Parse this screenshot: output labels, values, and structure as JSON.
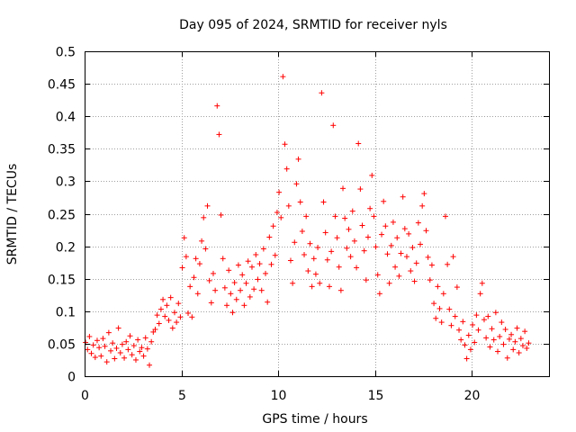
{
  "chart_data": {
    "type": "scatter",
    "title": "Day 095 of 2024, SRMTID for receiver nyls",
    "xlabel": "GPS time / hours",
    "ylabel": "SRMTID / TECUs",
    "xlim": [
      0,
      24
    ],
    "ylim": [
      0,
      0.5
    ],
    "xticks": [
      "0",
      "5",
      "10",
      "15",
      "20"
    ],
    "yticks": [
      "0",
      "0.05",
      "0.1",
      "0.15",
      "0.2",
      "0.25",
      "0.3",
      "0.35",
      "0.4",
      "0.45",
      "0.5"
    ],
    "grid": true,
    "marker": "+",
    "color": "#ff0000",
    "series": [
      {
        "points": [
          [
            0.05,
            0.052
          ],
          [
            0.15,
            0.041
          ],
          [
            0.25,
            0.061
          ],
          [
            0.35,
            0.035
          ],
          [
            0.45,
            0.048
          ],
          [
            0.55,
            0.029
          ],
          [
            0.65,
            0.055
          ],
          [
            0.75,
            0.044
          ],
          [
            0.85,
            0.031
          ],
          [
            0.95,
            0.058
          ],
          [
            1.05,
            0.046
          ],
          [
            1.15,
            0.022
          ],
          [
            1.25,
            0.067
          ],
          [
            1.35,
            0.039
          ],
          [
            1.45,
            0.051
          ],
          [
            1.55,
            0.027
          ],
          [
            1.65,
            0.043
          ],
          [
            1.75,
            0.074
          ],
          [
            1.85,
            0.036
          ],
          [
            1.95,
            0.049
          ],
          [
            2.05,
            0.028
          ],
          [
            2.15,
            0.053
          ],
          [
            2.25,
            0.041
          ],
          [
            2.35,
            0.062
          ],
          [
            2.45,
            0.033
          ],
          [
            2.55,
            0.047
          ],
          [
            2.65,
            0.025
          ],
          [
            2.75,
            0.056
          ],
          [
            2.85,
            0.038
          ],
          [
            2.95,
            0.044
          ],
          [
            3.05,
            0.031
          ],
          [
            3.15,
            0.059
          ],
          [
            3.25,
            0.042
          ],
          [
            3.35,
            0.017
          ],
          [
            3.45,
            0.053
          ],
          [
            3.55,
            0.068
          ],
          [
            3.65,
            0.072
          ],
          [
            3.75,
            0.094
          ],
          [
            3.85,
            0.081
          ],
          [
            3.95,
            0.103
          ],
          [
            4.05,
            0.118
          ],
          [
            4.15,
            0.092
          ],
          [
            4.25,
            0.109
          ],
          [
            4.35,
            0.086
          ],
          [
            4.45,
            0.121
          ],
          [
            4.55,
            0.074
          ],
          [
            4.65,
            0.098
          ],
          [
            4.75,
            0.083
          ],
          [
            4.85,
            0.112
          ],
          [
            4.95,
            0.091
          ],
          [
            5.05,
            0.167
          ],
          [
            5.15,
            0.213
          ],
          [
            5.25,
            0.184
          ],
          [
            5.35,
            0.097
          ],
          [
            5.45,
            0.138
          ],
          [
            5.55,
            0.091
          ],
          [
            5.65,
            0.152
          ],
          [
            5.75,
            0.181
          ],
          [
            5.85,
            0.127
          ],
          [
            5.95,
            0.173
          ],
          [
            6.05,
            0.208
          ],
          [
            6.15,
            0.244
          ],
          [
            6.25,
            0.196
          ],
          [
            6.35,
            0.262
          ],
          [
            6.45,
            0.147
          ],
          [
            6.55,
            0.113
          ],
          [
            6.65,
            0.158
          ],
          [
            6.75,
            0.132
          ],
          [
            6.85,
            0.416
          ],
          [
            6.95,
            0.372
          ],
          [
            7.05,
            0.248
          ],
          [
            7.15,
            0.181
          ],
          [
            7.25,
            0.136
          ],
          [
            7.35,
            0.109
          ],
          [
            7.45,
            0.163
          ],
          [
            7.55,
            0.127
          ],
          [
            7.65,
            0.098
          ],
          [
            7.75,
            0.144
          ],
          [
            7.85,
            0.118
          ],
          [
            7.95,
            0.171
          ],
          [
            8.05,
            0.132
          ],
          [
            8.15,
            0.156
          ],
          [
            8.25,
            0.109
          ],
          [
            8.35,
            0.143
          ],
          [
            8.45,
            0.177
          ],
          [
            8.55,
            0.122
          ],
          [
            8.65,
            0.168
          ],
          [
            8.75,
            0.134
          ],
          [
            8.85,
            0.187
          ],
          [
            8.95,
            0.149
          ],
          [
            9.05,
            0.173
          ],
          [
            9.15,
            0.132
          ],
          [
            9.25,
            0.196
          ],
          [
            9.35,
            0.158
          ],
          [
            9.45,
            0.114
          ],
          [
            9.55,
            0.214
          ],
          [
            9.65,
            0.172
          ],
          [
            9.75,
            0.231
          ],
          [
            9.85,
            0.186
          ],
          [
            9.95,
            0.252
          ],
          [
            10.05,
            0.283
          ],
          [
            10.15,
            0.244
          ],
          [
            10.25,
            0.461
          ],
          [
            10.35,
            0.357
          ],
          [
            10.45,
            0.319
          ],
          [
            10.55,
            0.262
          ],
          [
            10.65,
            0.178
          ],
          [
            10.75,
            0.143
          ],
          [
            10.85,
            0.206
          ],
          [
            10.95,
            0.296
          ],
          [
            11.05,
            0.334
          ],
          [
            11.15,
            0.268
          ],
          [
            11.25,
            0.223
          ],
          [
            11.35,
            0.187
          ],
          [
            11.45,
            0.246
          ],
          [
            11.55,
            0.162
          ],
          [
            11.65,
            0.204
          ],
          [
            11.75,
            0.138
          ],
          [
            11.85,
            0.181
          ],
          [
            11.95,
            0.157
          ],
          [
            12.05,
            0.198
          ],
          [
            12.15,
            0.143
          ],
          [
            12.25,
            0.436
          ],
          [
            12.35,
            0.268
          ],
          [
            12.45,
            0.221
          ],
          [
            12.55,
            0.179
          ],
          [
            12.65,
            0.138
          ],
          [
            12.75,
            0.192
          ],
          [
            12.85,
            0.386
          ],
          [
            12.95,
            0.246
          ],
          [
            13.05,
            0.213
          ],
          [
            13.15,
            0.168
          ],
          [
            13.25,
            0.132
          ],
          [
            13.35,
            0.289
          ],
          [
            13.45,
            0.243
          ],
          [
            13.55,
            0.197
          ],
          [
            13.65,
            0.226
          ],
          [
            13.75,
            0.184
          ],
          [
            13.85,
            0.254
          ],
          [
            13.95,
            0.208
          ],
          [
            14.05,
            0.167
          ],
          [
            14.15,
            0.358
          ],
          [
            14.25,
            0.288
          ],
          [
            14.35,
            0.232
          ],
          [
            14.45,
            0.193
          ],
          [
            14.55,
            0.148
          ],
          [
            14.65,
            0.214
          ],
          [
            14.75,
            0.258
          ],
          [
            14.85,
            0.309
          ],
          [
            14.95,
            0.246
          ],
          [
            15.05,
            0.199
          ],
          [
            15.15,
            0.156
          ],
          [
            15.25,
            0.127
          ],
          [
            15.35,
            0.218
          ],
          [
            15.45,
            0.269
          ],
          [
            15.55,
            0.231
          ],
          [
            15.65,
            0.188
          ],
          [
            15.75,
            0.143
          ],
          [
            15.85,
            0.201
          ],
          [
            15.95,
            0.237
          ],
          [
            16.05,
            0.168
          ],
          [
            16.15,
            0.213
          ],
          [
            16.25,
            0.154
          ],
          [
            16.35,
            0.189
          ],
          [
            16.45,
            0.276
          ],
          [
            16.55,
            0.227
          ],
          [
            16.65,
            0.184
          ],
          [
            16.75,
            0.219
          ],
          [
            16.85,
            0.162
          ],
          [
            16.95,
            0.198
          ],
          [
            17.05,
            0.146
          ],
          [
            17.15,
            0.174
          ],
          [
            17.25,
            0.236
          ],
          [
            17.35,
            0.203
          ],
          [
            17.45,
            0.262
          ],
          [
            17.55,
            0.281
          ],
          [
            17.65,
            0.224
          ],
          [
            17.75,
            0.183
          ],
          [
            17.85,
            0.148
          ],
          [
            17.95,
            0.171
          ],
          [
            18.05,
            0.112
          ],
          [
            18.15,
            0.089
          ],
          [
            18.25,
            0.138
          ],
          [
            18.35,
            0.104
          ],
          [
            18.45,
            0.083
          ],
          [
            18.55,
            0.127
          ],
          [
            18.65,
            0.246
          ],
          [
            18.75,
            0.172
          ],
          [
            18.85,
            0.103
          ],
          [
            18.95,
            0.078
          ],
          [
            19.05,
            0.184
          ],
          [
            19.15,
            0.092
          ],
          [
            19.25,
            0.137
          ],
          [
            19.35,
            0.071
          ],
          [
            19.45,
            0.056
          ],
          [
            19.55,
            0.084
          ],
          [
            19.65,
            0.048
          ],
          [
            19.75,
            0.027
          ],
          [
            19.85,
            0.063
          ],
          [
            19.95,
            0.041
          ],
          [
            20.05,
            0.079
          ],
          [
            20.15,
            0.052
          ],
          [
            20.25,
            0.094
          ],
          [
            20.35,
            0.071
          ],
          [
            20.45,
            0.127
          ],
          [
            20.55,
            0.143
          ],
          [
            20.65,
            0.087
          ],
          [
            20.75,
            0.059
          ],
          [
            20.85,
            0.092
          ],
          [
            20.95,
            0.045
          ],
          [
            21.05,
            0.073
          ],
          [
            21.15,
            0.056
          ],
          [
            21.25,
            0.098
          ],
          [
            21.35,
            0.038
          ],
          [
            21.45,
            0.061
          ],
          [
            21.55,
            0.083
          ],
          [
            21.65,
            0.049
          ],
          [
            21.75,
            0.072
          ],
          [
            21.85,
            0.028
          ],
          [
            21.95,
            0.057
          ],
          [
            22.05,
            0.064
          ],
          [
            22.15,
            0.041
          ],
          [
            22.25,
            0.053
          ],
          [
            22.35,
            0.074
          ],
          [
            22.45,
            0.036
          ],
          [
            22.55,
            0.058
          ],
          [
            22.65,
            0.047
          ],
          [
            22.75,
            0.069
          ],
          [
            22.85,
            0.043
          ],
          [
            22.95,
            0.051
          ]
        ]
      }
    ]
  }
}
